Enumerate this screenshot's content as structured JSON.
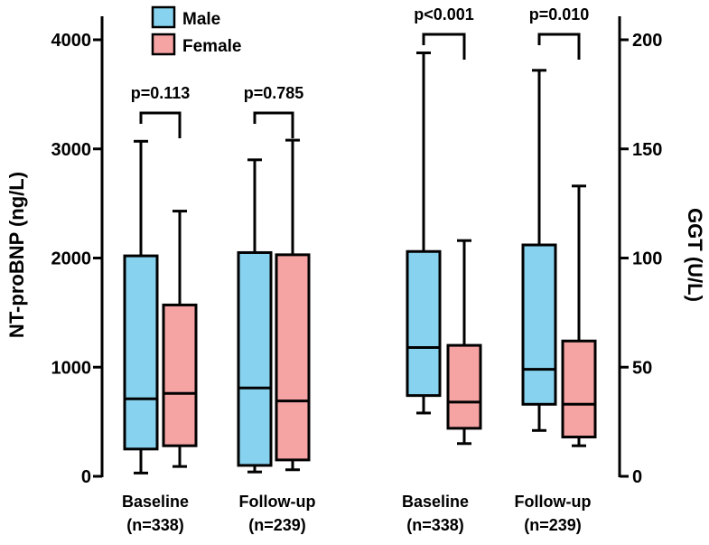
{
  "chart_data": {
    "type": "boxplot",
    "legend": {
      "position": "top-left",
      "entries": [
        {
          "name": "Male",
          "color": "#87d3ef"
        },
        {
          "name": "Female",
          "color": "#f5a3a3"
        }
      ]
    },
    "panels": [
      {
        "id": "ntprobnp",
        "ylabel": "NT-proBNP (ng/L)",
        "axis_side": "left",
        "ylim": [
          0,
          4100
        ],
        "ticks": [
          0,
          1000,
          2000,
          3000,
          4000
        ],
        "tick_labels": [
          "0",
          "1000",
          "2000",
          "3000",
          "4000"
        ],
        "groups": [
          {
            "label_line1": "Baseline",
            "label_line2": "(n=338)",
            "p_value": "p=0.113",
            "boxes": [
              {
                "series": "Male",
                "min": 30,
                "q1": 250,
                "median": 710,
                "q3": 2020,
                "max": 3070
              },
              {
                "series": "Female",
                "min": 90,
                "q1": 280,
                "median": 760,
                "q3": 1570,
                "max": 2430
              }
            ]
          },
          {
            "label_line1": "Follow-up",
            "label_line2": "(n=239)",
            "p_value": "p=0.785",
            "boxes": [
              {
                "series": "Male",
                "min": 40,
                "q1": 100,
                "median": 810,
                "q3": 2050,
                "max": 2900
              },
              {
                "series": "Female",
                "min": 60,
                "q1": 150,
                "median": 690,
                "q3": 2030,
                "max": 3080
              }
            ]
          }
        ]
      },
      {
        "id": "ggt",
        "ylabel": "GGT (U/L)",
        "axis_side": "right",
        "ylim": [
          0,
          210
        ],
        "ticks": [
          0,
          50,
          100,
          150,
          200
        ],
        "tick_labels": [
          "0",
          "50",
          "100",
          "150",
          "200"
        ],
        "groups": [
          {
            "label_line1": "Baseline",
            "label_line2": "(n=338)",
            "p_value": "p<0.001",
            "boxes": [
              {
                "series": "Male",
                "min": 29,
                "q1": 37,
                "median": 59,
                "q3": 103,
                "max": 194
              },
              {
                "series": "Female",
                "min": 15,
                "q1": 22,
                "median": 34,
                "q3": 60,
                "max": 108
              }
            ]
          },
          {
            "label_line1": "Follow-up",
            "label_line2": "(n=239)",
            "p_value": "p=0.010",
            "boxes": [
              {
                "series": "Male",
                "min": 21,
                "q1": 33,
                "median": 49,
                "q3": 106,
                "max": 186
              },
              {
                "series": "Female",
                "min": 14,
                "q1": 18,
                "median": 33,
                "q3": 62,
                "max": 133
              }
            ]
          }
        ]
      }
    ]
  }
}
